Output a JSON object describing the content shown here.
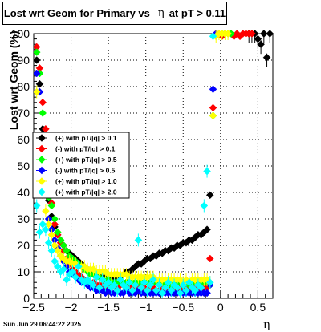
{
  "title": {
    "prefix": "Lost wrt Geom for Primary vs",
    "eta_symbol": "η",
    "suffix": "at pT > 0.11"
  },
  "footer": {
    "date": "Sun Jun 29 06:44:22 2025"
  },
  "axis": {
    "xlabel": "η",
    "ylabel": "Lost wrt Geom (%)"
  },
  "colors": {
    "frame": "#000000",
    "grid": "#000000",
    "series": [
      "#000000",
      "#ff0000",
      "#00ff00",
      "#0000ff",
      "#ffff00",
      "#00ffff"
    ]
  },
  "chart_data": {
    "type": "scatter",
    "title": "Lost wrt Geom for Primary vs η at pT > 0.11",
    "xlabel": "η",
    "ylabel": "Lost wrt Geom (%)",
    "xlim": [
      -2.5,
      0.7
    ],
    "ylim": [
      0,
      100
    ],
    "x_ticks": [
      -2.5,
      -2,
      -1.5,
      -1,
      -0.5,
      0,
      0.5
    ],
    "x_tick_labels": [
      "−2.5",
      "−2",
      "−1.5",
      "−1",
      "−0.5",
      "0",
      "0.5"
    ],
    "y_ticks": [
      0,
      10,
      20,
      30,
      40,
      50,
      60,
      70,
      80,
      90,
      100
    ],
    "y_tick_labels": [
      "0",
      "10",
      "20",
      "30",
      "40",
      "50",
      "60",
      "70",
      "80",
      "90",
      "100"
    ],
    "grid": true,
    "legend_position": "middle-left",
    "series": [
      {
        "name": "(+) with pT/|q| > 0.1",
        "x": [
          -2.46,
          -2.42,
          -2.38,
          -2.34,
          -2.3,
          -2.26,
          -2.22,
          -2.18,
          -2.14,
          -2.1,
          -2.06,
          -2.02,
          -1.98,
          -1.94,
          -1.9,
          -1.86,
          -1.82,
          -1.78,
          -1.74,
          -1.7,
          -1.66,
          -1.62,
          -1.58,
          -1.54,
          -1.5,
          -1.46,
          -1.42,
          -1.38,
          -1.34,
          -1.3,
          -1.26,
          -1.22,
          -1.18,
          -1.14,
          -1.1,
          -1.06,
          -1.02,
          -0.98,
          -0.94,
          -0.9,
          -0.86,
          -0.82,
          -0.78,
          -0.74,
          -0.7,
          -0.66,
          -0.62,
          -0.58,
          -0.54,
          -0.5,
          -0.46,
          -0.42,
          -0.38,
          -0.34,
          -0.3,
          -0.26,
          -0.22,
          -0.18,
          -0.14,
          0.38,
          0.42,
          0.46,
          0.5,
          0.54,
          0.58,
          0.62,
          0.66
        ],
        "y": [
          90,
          81,
          64,
          50,
          37,
          31,
          27,
          24,
          22,
          20,
          18,
          17,
          16,
          15,
          14,
          13,
          12,
          11,
          10,
          10,
          9,
          9,
          9,
          8,
          8,
          8,
          8,
          8,
          8,
          9,
          10,
          10,
          11,
          12,
          13,
          13,
          14,
          15,
          15,
          16,
          16,
          17,
          17,
          18,
          18,
          19,
          19,
          20,
          20,
          21,
          21,
          22,
          22,
          23,
          24,
          24,
          25,
          26,
          39,
          100,
          100,
          100,
          98,
          96,
          100,
          91,
          100
        ]
      },
      {
        "name": "(-) with pT/|q| > 0.1",
        "x": [
          -2.46,
          -2.42,
          -2.38,
          -2.34,
          -2.3,
          -2.26,
          -2.22,
          -2.18,
          -2.14,
          -2.1,
          -2.06,
          -2.02,
          -1.98,
          -1.94,
          -1.9,
          -1.86,
          -1.82,
          -1.78,
          -1.74,
          -1.7,
          -1.66,
          -1.62,
          -1.58,
          -1.54,
          -1.5,
          -1.46,
          -1.42,
          -1.38,
          -1.34,
          -1.3,
          -1.26,
          -1.22,
          -1.18,
          -1.14,
          -1.1,
          -1.06,
          -1.02,
          -0.98,
          -0.94,
          -0.9,
          -0.86,
          -0.82,
          -0.78,
          -0.74,
          -0.7,
          -0.66,
          -0.62,
          -0.58,
          -0.54,
          -0.5,
          -0.46,
          -0.42,
          -0.38,
          -0.34,
          -0.3,
          -0.26,
          -0.22,
          -0.18,
          -0.14,
          -0.1,
          -0.06,
          -0.02,
          0.02,
          0.06,
          0.1,
          0.14,
          0.18,
          0.22,
          0.26,
          0.3,
          0.34,
          0.38,
          0.42
        ],
        "y": [
          95,
          87,
          74,
          64,
          45,
          36,
          28,
          24,
          21,
          18,
          15,
          13,
          11,
          10,
          9,
          8,
          7,
          7,
          6,
          6,
          5,
          5,
          5,
          4,
          5,
          4,
          5,
          4,
          5,
          5,
          6,
          4,
          5,
          4,
          5,
          3,
          4,
          3,
          4,
          4,
          3,
          3,
          4,
          3,
          3,
          4,
          3,
          3,
          4,
          3,
          4,
          3,
          4,
          4,
          4,
          3,
          4,
          4,
          15,
          72,
          100,
          100,
          99,
          100,
          100,
          100,
          99,
          100,
          99,
          100,
          100,
          100,
          100
        ]
      },
      {
        "name": "(+) with pT/|q| > 0.5",
        "x": [
          -2.46,
          -2.42,
          -2.38,
          -2.34,
          -2.3,
          -2.26,
          -2.22,
          -2.18,
          -2.14,
          -2.1,
          -2.06,
          -2.02,
          -1.98,
          -1.94,
          -1.9,
          -1.86,
          -1.82,
          -1.78,
          -1.74,
          -1.7,
          -1.66,
          -1.62,
          -1.58,
          -1.54,
          -1.5,
          -1.46,
          -1.42,
          -1.38,
          -1.34,
          -1.3,
          -1.26,
          -1.22,
          -1.18,
          -1.14,
          -1.1,
          -1.06,
          -1.02,
          -0.98,
          -0.94,
          -0.9,
          -0.86,
          -0.82,
          -0.78,
          -0.74,
          -0.7,
          -0.66,
          -0.62,
          -0.58,
          -0.54,
          -0.5,
          -0.46,
          -0.42,
          -0.38,
          -0.34,
          -0.3,
          -0.26,
          -0.22,
          -0.18,
          -0.14,
          -0.1,
          -0.06,
          -0.02,
          0.02,
          0.06,
          0.1,
          0.14
        ],
        "y": [
          93,
          85,
          70,
          42,
          38,
          35,
          30,
          25,
          22,
          20,
          18,
          16,
          15,
          14,
          13,
          12,
          11,
          10,
          9,
          9,
          8,
          8,
          7,
          7,
          7,
          6,
          6,
          6,
          6,
          6,
          6,
          6,
          6,
          6,
          6,
          6,
          6,
          6,
          6,
          6,
          6,
          6,
          6,
          5,
          6,
          5,
          6,
          6,
          6,
          5,
          6,
          5,
          6,
          6,
          6,
          6,
          6,
          6,
          5,
          69,
          99,
          100,
          100,
          100,
          100,
          100
        ]
      },
      {
        "name": "(-) with pT/|q| > 0.5",
        "x": [
          -2.46,
          -2.42,
          -2.38,
          -2.34,
          -2.3,
          -2.26,
          -2.22,
          -2.18,
          -2.14,
          -2.1,
          -2.06,
          -2.02,
          -1.98,
          -1.94,
          -1.9,
          -1.86,
          -1.82,
          -1.78,
          -1.74,
          -1.7,
          -1.66,
          -1.62,
          -1.58,
          -1.54,
          -1.5,
          -1.46,
          -1.42,
          -1.38,
          -1.34,
          -1.3,
          -1.26,
          -1.22,
          -1.18,
          -1.14,
          -1.1,
          -1.06,
          -1.02,
          -0.98,
          -0.94,
          -0.9,
          -0.86,
          -0.82,
          -0.78,
          -0.74,
          -0.7,
          -0.66,
          -0.62,
          -0.58,
          -0.54,
          -0.5,
          -0.46,
          -0.42,
          -0.38,
          -0.34,
          -0.3,
          -0.26,
          -0.22,
          -0.18,
          -0.14,
          -0.1,
          -0.06,
          -0.02
        ],
        "y": [
          85,
          78,
          48,
          40,
          30,
          26,
          22,
          19,
          16,
          14,
          12,
          10,
          9,
          8,
          7,
          6,
          6,
          5,
          4,
          4,
          3,
          3,
          3,
          2,
          3,
          2,
          2,
          3,
          2,
          2,
          3,
          2,
          2,
          2,
          3,
          2,
          2,
          2,
          2,
          2,
          2,
          2,
          2,
          2,
          2,
          2,
          2,
          2,
          2,
          2,
          2,
          2,
          2,
          2,
          2,
          2,
          2,
          2,
          5,
          79,
          100,
          100
        ]
      },
      {
        "name": "(+) with pT/|q| > 1.0",
        "x": [
          -2.46,
          -2.42,
          -2.38,
          -2.34,
          -2.3,
          -2.26,
          -2.22,
          -2.18,
          -2.14,
          -2.1,
          -2.06,
          -2.02,
          -1.98,
          -1.94,
          -1.9,
          -1.86,
          -1.82,
          -1.78,
          -1.74,
          -1.7,
          -1.66,
          -1.62,
          -1.58,
          -1.54,
          -1.5,
          -1.46,
          -1.42,
          -1.38,
          -1.34,
          -1.3,
          -1.26,
          -1.22,
          -1.18,
          -1.14,
          -1.1,
          -1.06,
          -1.02,
          -0.98,
          -0.94,
          -0.9,
          -0.86,
          -0.82,
          -0.78,
          -0.74,
          -0.7,
          -0.66,
          -0.62,
          -0.58,
          -0.54,
          -0.5,
          -0.46,
          -0.42,
          -0.38,
          -0.34,
          -0.3,
          -0.26,
          -0.22,
          -0.18,
          -0.14,
          -0.1,
          -0.06,
          -0.02,
          0.02,
          0.06,
          0.1
        ],
        "y": [
          78,
          60,
          40,
          33,
          28,
          24,
          20,
          18,
          16,
          15,
          14,
          14,
          13,
          13,
          12,
          12,
          12,
          11,
          11,
          11,
          10,
          10,
          10,
          10,
          9,
          9,
          9,
          9,
          9,
          9,
          9,
          8,
          8,
          8,
          8,
          8,
          8,
          8,
          8,
          8,
          7,
          7,
          7,
          7,
          7,
          7,
          7,
          7,
          7,
          6,
          7,
          6,
          7,
          7,
          7,
          7,
          7,
          7,
          6,
          69,
          99,
          100,
          100,
          100,
          100
        ]
      },
      {
        "name": "(+) with pT/|q| > 2.0",
        "x": [
          -2.46,
          -2.42,
          -2.38,
          -2.34,
          -2.3,
          -2.26,
          -2.22,
          -2.18,
          -2.14,
          -2.1,
          -2.06,
          -2.02,
          -1.98,
          -1.94,
          -1.9,
          -1.86,
          -1.82,
          -1.78,
          -1.74,
          -1.7,
          -1.66,
          -1.62,
          -1.58,
          -1.54,
          -1.5,
          -1.46,
          -1.42,
          -1.38,
          -1.34,
          -1.3,
          -1.26,
          -1.22,
          -1.18,
          -1.14,
          -1.1,
          -1.06,
          -1.02,
          -0.98,
          -0.94,
          -0.9,
          -0.86,
          -0.82,
          -0.78,
          -0.74,
          -0.7,
          -0.66,
          -0.62,
          -0.58,
          -0.54,
          -0.5,
          -0.46,
          -0.42,
          -0.38,
          -0.34,
          -0.3,
          -0.26,
          -0.22,
          -0.18,
          -0.14,
          -0.1
        ],
        "y": [
          35,
          25,
          28,
          26,
          21,
          18,
          14,
          12,
          10,
          11,
          7,
          9,
          10,
          8,
          12,
          7,
          6,
          7,
          6,
          5,
          8,
          4,
          7,
          5,
          6,
          4,
          5,
          3,
          7,
          5,
          4,
          6,
          3,
          5,
          22,
          4,
          6,
          3,
          5,
          7,
          3,
          5,
          2,
          4,
          6,
          3,
          5,
          4,
          2,
          5,
          3,
          6,
          4,
          3,
          5,
          4,
          35,
          48,
          6,
          99
        ]
      }
    ]
  }
}
